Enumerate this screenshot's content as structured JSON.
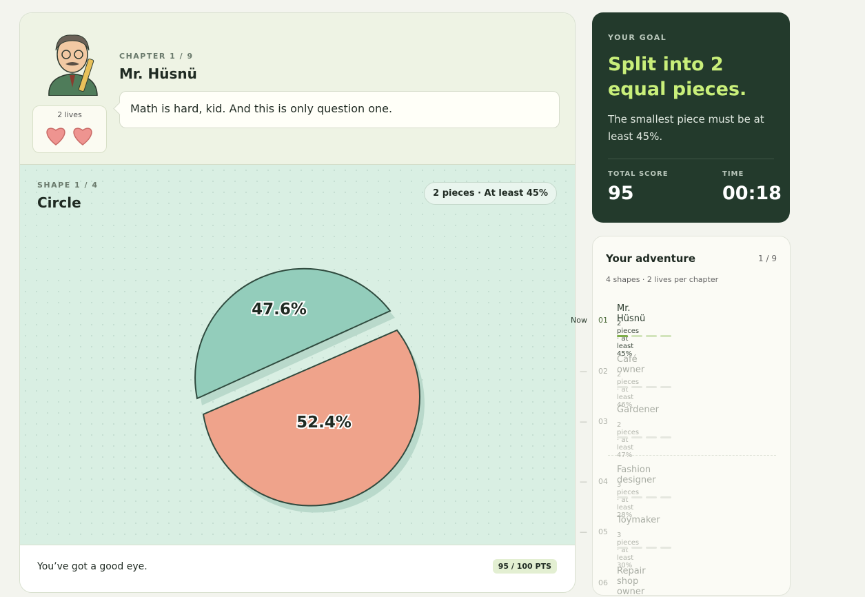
{
  "chapter": {
    "label": "CHAPTER 1 / 9",
    "character": "Mr. Hüsnü",
    "lives": "2 lives",
    "speech": "Math is hard, kid. And this is only question one."
  },
  "shape": {
    "label": "SHAPE 1 / 4",
    "name": "Circle",
    "badge": "2 pieces · At least 45%",
    "pieces": [
      "47.6%",
      "52.4%"
    ]
  },
  "feedback": {
    "text": "You’ve got a good eye.",
    "points": "95 / 100 PTS"
  },
  "goal": {
    "label": "YOUR GOAL",
    "title": "Split into 2 equal pieces.",
    "text": "The smallest piece must be at least 45%.",
    "score_label": "TOTAL SCORE",
    "score": "95",
    "time_label": "TIME",
    "time": "00:18"
  },
  "adventure": {
    "title": "Your adventure",
    "progress": "1 / 9",
    "subtitle": "4 shapes · 2 lives per chapter",
    "items": [
      {
        "number": "01",
        "name": "Mr. Hüsnü",
        "detail": "2 pieces · at least 45%",
        "status": "Now"
      },
      {
        "number": "02",
        "name": "Café owner",
        "detail": "2 pieces · at least 46%",
        "status": "—"
      },
      {
        "number": "03",
        "name": "Gardener",
        "detail": "2 pieces · at least 47%",
        "status": "—"
      },
      {
        "number": "04",
        "name": "Fashion designer",
        "detail": "3 pieces · at least 28%",
        "status": "—"
      },
      {
        "number": "05",
        "name": "Toymaker",
        "detail": "3 pieces · at least 30%",
        "status": "—"
      },
      {
        "number": "06",
        "name": "Repair shop owner",
        "detail": "",
        "status": ""
      }
    ]
  }
}
